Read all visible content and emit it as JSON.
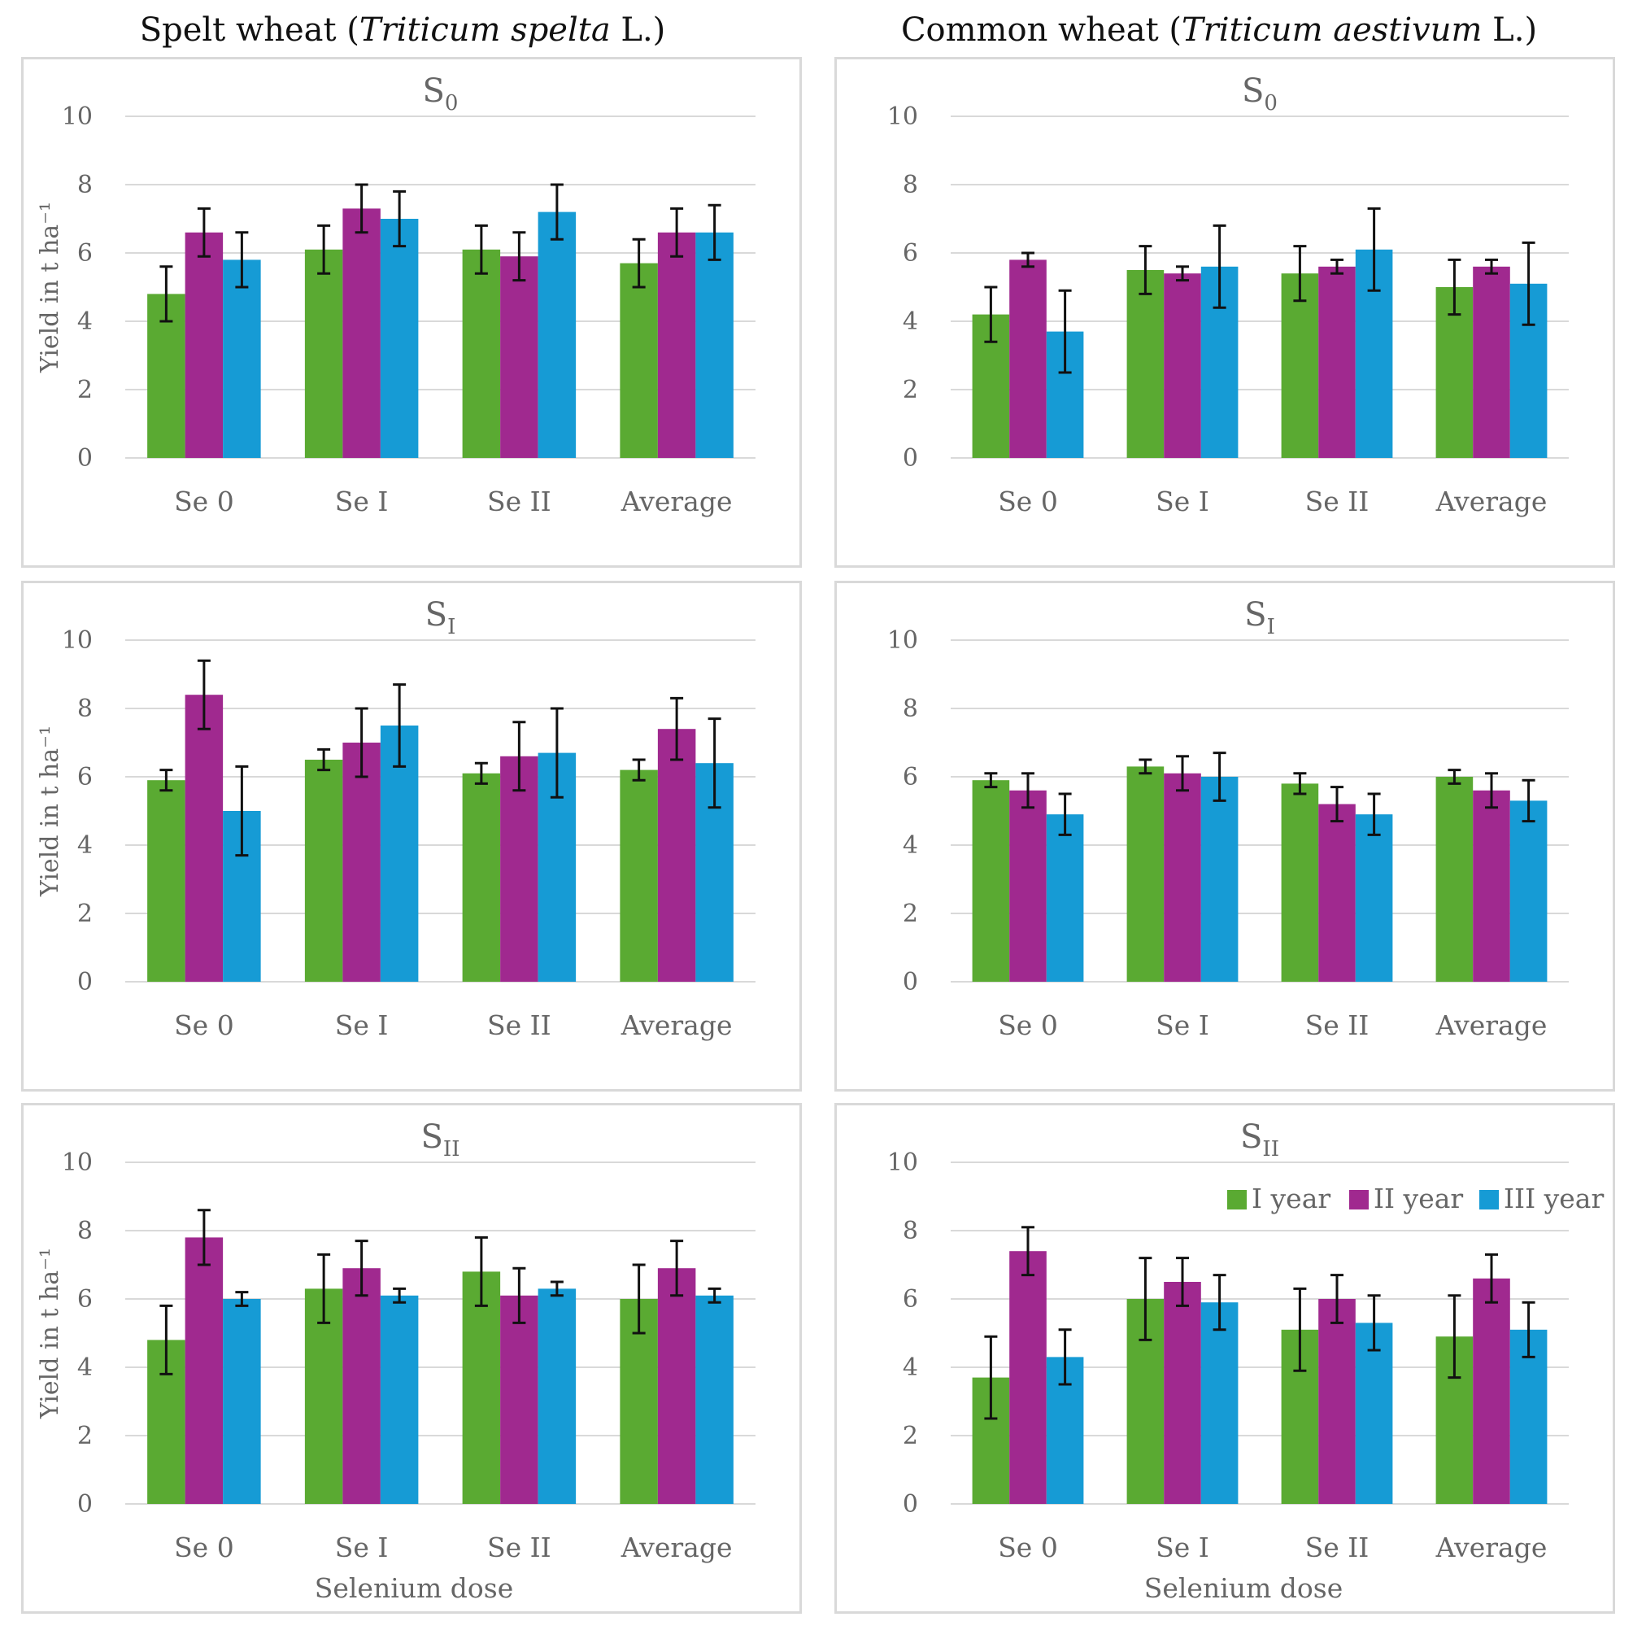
{
  "figure": {
    "left_title_main": "Spelt wheat (",
    "left_title_italic": "Triticum spelta",
    "left_title_end": " L.)",
    "right_title_main": "Common wheat (",
    "right_title_italic": "Triticum aestivum",
    "right_title_end": " L.)"
  },
  "colors": {
    "I year": "#5aaa32",
    "II year": "#a0298f",
    "III year": "#169bd5"
  },
  "legend": [
    "I year",
    "II year",
    "III year"
  ],
  "chart_data": [
    {
      "id": "spelt-s0",
      "type": "bar",
      "title": "S",
      "title_sub": "0",
      "categories": [
        "Se 0",
        "Se I",
        "Se II",
        "Average"
      ],
      "series": [
        {
          "name": "I year",
          "values": [
            4.8,
            6.1,
            6.1,
            5.7
          ],
          "errors": [
            0.8,
            0.7,
            0.7,
            0.7
          ]
        },
        {
          "name": "II year",
          "values": [
            6.6,
            7.3,
            5.9,
            6.6
          ],
          "errors": [
            0.7,
            0.7,
            0.7,
            0.7
          ]
        },
        {
          "name": "III year",
          "values": [
            5.8,
            7.0,
            7.2,
            6.6
          ],
          "errors": [
            0.8,
            0.8,
            0.8,
            0.8
          ]
        }
      ],
      "ylabel": "Yield in t ha⁻¹",
      "xlabel": "",
      "yticks": [
        "0",
        "2",
        "4",
        "6",
        "8",
        "10"
      ],
      "ylim": [
        0,
        10
      ]
    },
    {
      "id": "common-s0",
      "type": "bar",
      "title": "S",
      "title_sub": "0",
      "categories": [
        "Se 0",
        "Se I",
        "Se II",
        "Average"
      ],
      "series": [
        {
          "name": "I year",
          "values": [
            4.2,
            5.5,
            5.4,
            5.0
          ],
          "errors": [
            0.8,
            0.7,
            0.8,
            0.8
          ]
        },
        {
          "name": "II year",
          "values": [
            5.8,
            5.4,
            5.6,
            5.6
          ],
          "errors": [
            0.2,
            0.2,
            0.2,
            0.2
          ]
        },
        {
          "name": "III year",
          "values": [
            3.7,
            5.6,
            6.1,
            5.1
          ],
          "errors": [
            1.2,
            1.2,
            1.2,
            1.2
          ]
        }
      ],
      "ylabel": "",
      "xlabel": "",
      "yticks": [
        "0",
        "2",
        "4",
        "6",
        "8",
        "10"
      ],
      "ylim": [
        0,
        10
      ]
    },
    {
      "id": "spelt-s1",
      "type": "bar",
      "title": "S",
      "title_sub": "I",
      "categories": [
        "Se 0",
        "Se I",
        "Se II",
        "Average"
      ],
      "series": [
        {
          "name": "I year",
          "values": [
            5.9,
            6.5,
            6.1,
            6.2
          ],
          "errors": [
            0.3,
            0.3,
            0.3,
            0.3
          ]
        },
        {
          "name": "II year",
          "values": [
            8.4,
            7.0,
            6.6,
            7.4
          ],
          "errors": [
            1.0,
            1.0,
            1.0,
            0.9
          ]
        },
        {
          "name": "III year",
          "values": [
            5.0,
            7.5,
            6.7,
            6.4
          ],
          "errors": [
            1.3,
            1.2,
            1.3,
            1.3
          ]
        }
      ],
      "ylabel": "Yield in t ha⁻¹",
      "xlabel": "",
      "yticks": [
        "0",
        "2",
        "4",
        "6",
        "8",
        "10"
      ],
      "ylim": [
        0,
        10
      ]
    },
    {
      "id": "common-s1",
      "type": "bar",
      "title": "S",
      "title_sub": "I",
      "categories": [
        "Se 0",
        "Se I",
        "Se II",
        "Average"
      ],
      "series": [
        {
          "name": "I year",
          "values": [
            5.9,
            6.3,
            5.8,
            6.0
          ],
          "errors": [
            0.2,
            0.2,
            0.3,
            0.2
          ]
        },
        {
          "name": "II year",
          "values": [
            5.6,
            6.1,
            5.2,
            5.6
          ],
          "errors": [
            0.5,
            0.5,
            0.5,
            0.5
          ]
        },
        {
          "name": "III year",
          "values": [
            4.9,
            6.0,
            4.9,
            5.3
          ],
          "errors": [
            0.6,
            0.7,
            0.6,
            0.6
          ]
        }
      ],
      "ylabel": "",
      "xlabel": "",
      "yticks": [
        "0",
        "2",
        "4",
        "6",
        "8",
        "10"
      ],
      "ylim": [
        0,
        10
      ]
    },
    {
      "id": "spelt-s2",
      "type": "bar",
      "title": "S",
      "title_sub": "II",
      "categories": [
        "Se 0",
        "Se I",
        "Se II",
        "Average"
      ],
      "series": [
        {
          "name": "I year",
          "values": [
            4.8,
            6.3,
            6.8,
            6.0
          ],
          "errors": [
            1.0,
            1.0,
            1.0,
            1.0
          ]
        },
        {
          "name": "II year",
          "values": [
            7.8,
            6.9,
            6.1,
            6.9
          ],
          "errors": [
            0.8,
            0.8,
            0.8,
            0.8
          ]
        },
        {
          "name": "III year",
          "values": [
            6.0,
            6.1,
            6.3,
            6.1
          ],
          "errors": [
            0.2,
            0.2,
            0.2,
            0.2
          ]
        }
      ],
      "ylabel": "Yield in t ha⁻¹",
      "xlabel": "Selenium dose",
      "yticks": [
        "0",
        "2",
        "4",
        "6",
        "8",
        "10"
      ],
      "ylim": [
        0,
        10
      ]
    },
    {
      "id": "common-s2",
      "type": "bar",
      "title": "S",
      "title_sub": "II",
      "categories": [
        "Se 0",
        "Se I",
        "Se II",
        "Average"
      ],
      "series": [
        {
          "name": "I year",
          "values": [
            3.7,
            6.0,
            5.1,
            4.9
          ],
          "errors": [
            1.2,
            1.2,
            1.2,
            1.2
          ]
        },
        {
          "name": "II year",
          "values": [
            7.4,
            6.5,
            6.0,
            6.6
          ],
          "errors": [
            0.7,
            0.7,
            0.7,
            0.7
          ]
        },
        {
          "name": "III year",
          "values": [
            4.3,
            5.9,
            5.3,
            5.1
          ],
          "errors": [
            0.8,
            0.8,
            0.8,
            0.8
          ]
        }
      ],
      "ylabel": "",
      "xlabel": "Selenium dose",
      "yticks": [
        "0",
        "2",
        "4",
        "6",
        "8",
        "10"
      ],
      "ylim": [
        0,
        10
      ],
      "show_legend": true
    }
  ]
}
